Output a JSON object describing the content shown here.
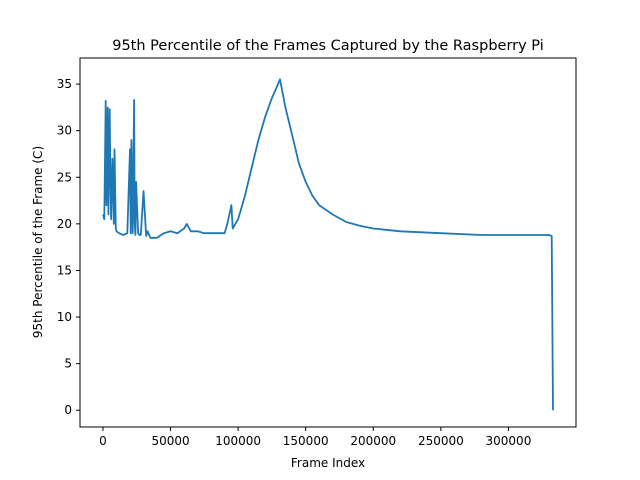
{
  "chart_data": {
    "type": "line",
    "title": "95th Percentile of the Frames Captured by the Raspberry Pi",
    "xlabel": "Frame Index",
    "ylabel": "95th Percentile of the Frame (C)",
    "xlim": [
      -17000,
      350000
    ],
    "ylim": [
      -1.8,
      37.8
    ],
    "xticks": [
      0,
      50000,
      100000,
      150000,
      200000,
      250000,
      300000
    ],
    "xtick_labels": [
      "0",
      "50000",
      "100000",
      "150000",
      "200000",
      "250000",
      "300000"
    ],
    "yticks": [
      0,
      5,
      10,
      15,
      20,
      25,
      30,
      35
    ],
    "ytick_labels": [
      "0",
      "5",
      "10",
      "15",
      "20",
      "25",
      "30",
      "35"
    ],
    "grid": false,
    "legend": "none",
    "color": "#1f77b4",
    "series": [
      {
        "x": [
          0,
          1000,
          2000,
          2200,
          2500,
          3500,
          4000,
          5000,
          5500,
          6000,
          7000,
          8000,
          8500,
          9500,
          10000,
          12000,
          15000,
          18000,
          20000,
          20500,
          21000,
          22000,
          23000,
          23500,
          24000,
          24500,
          26000,
          27000,
          28000,
          30000,
          32000,
          33000,
          35000,
          40000,
          45000,
          50000,
          55000,
          60000,
          62000,
          65000,
          70000,
          75000,
          80000,
          85000,
          90000,
          92000,
          95000,
          96000,
          100000,
          105000,
          110000,
          115000,
          120000,
          125000,
          128000,
          131000,
          135000,
          140000,
          145000,
          150000,
          155000,
          160000,
          170000,
          180000,
          190000,
          200000,
          220000,
          250000,
          280000,
          300000,
          320000,
          330000,
          332000,
          333000
        ],
        "values": [
          21.0,
          20.5,
          33.2,
          29.0,
          22.0,
          32.5,
          21.0,
          32.3,
          25.0,
          20.5,
          27.0,
          20.0,
          28.0,
          19.5,
          19.2,
          19.0,
          18.8,
          19.0,
          28.0,
          19.0,
          29.0,
          19.0,
          33.3,
          20.0,
          18.8,
          24.5,
          19.0,
          18.8,
          18.8,
          23.5,
          18.7,
          19.2,
          18.5,
          18.5,
          19.0,
          19.2,
          19.0,
          19.5,
          20.0,
          19.2,
          19.2,
          19.0,
          19.0,
          19.0,
          19.0,
          20.0,
          22.0,
          19.5,
          20.5,
          23.0,
          26.0,
          29.0,
          31.5,
          33.5,
          34.5,
          35.5,
          32.5,
          29.5,
          26.5,
          24.5,
          23.0,
          22.0,
          21.0,
          20.2,
          19.8,
          19.5,
          19.2,
          19.0,
          18.8,
          18.8,
          18.8,
          18.8,
          18.7,
          0
        ]
      }
    ]
  }
}
